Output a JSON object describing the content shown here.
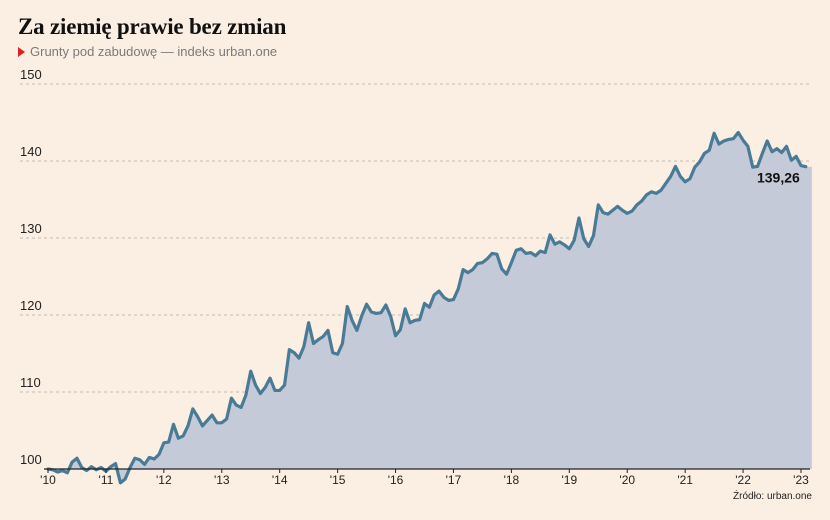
{
  "header": {
    "title": "Za ziemię prawie bez zmian",
    "subtitle": "Grunty pod zabudowę — indeks urban.one"
  },
  "footer": {
    "source": "Źródło: urban.one"
  },
  "colors": {
    "line": "#4a7b96",
    "area": "#c5cad8",
    "grid": "#b5aba0",
    "background": "#fbefe3",
    "marker": "#e02020"
  },
  "chart_data": {
    "type": "area",
    "title": "Za ziemię prawie bez zmian",
    "subtitle": "Grunty pod zabudowę — indeks urban.one",
    "xlabel": "",
    "ylabel": "",
    "ylim": [
      100,
      150
    ],
    "yticks": [
      100,
      110,
      120,
      130,
      140,
      150
    ],
    "xticks": [
      "'10",
      "'11",
      "'12",
      "'13",
      "'14",
      "'15",
      "'16",
      "'17",
      "'18",
      "'19",
      "'20",
      "'21",
      "'22",
      "'23"
    ],
    "grid": true,
    "x_start": "2010-01",
    "x_frequency": "monthly",
    "annotation": {
      "label": "139,26",
      "value": 139.26
    },
    "series": [
      {
        "values": [
          100.0,
          99.9,
          99.6,
          99.8,
          99.5,
          100.9,
          101.4,
          100.2,
          99.8,
          100.3,
          99.9,
          100.2,
          99.7,
          100.3,
          100.7,
          98.2,
          98.7,
          100.2,
          101.4,
          101.2,
          100.6,
          101.5,
          101.3,
          101.9,
          103.4,
          103.5,
          105.8,
          104.0,
          104.3,
          105.6,
          107.8,
          106.8,
          105.6,
          106.3,
          107.0,
          106.0,
          106.0,
          106.5,
          109.2,
          108.3,
          108.0,
          109.6,
          112.7,
          110.9,
          109.8,
          110.6,
          111.8,
          110.2,
          110.2,
          110.9,
          115.5,
          115.1,
          114.4,
          115.9,
          119.0,
          116.3,
          116.8,
          117.2,
          118.0,
          115.1,
          114.9,
          116.3,
          121.1,
          119.3,
          118.0,
          119.9,
          121.4,
          120.4,
          120.2,
          120.3,
          121.3,
          119.8,
          117.3,
          118.1,
          120.8,
          119.0,
          119.3,
          119.4,
          121.5,
          121.0,
          122.6,
          123.1,
          122.3,
          121.9,
          122.0,
          123.4,
          125.9,
          125.5,
          125.9,
          126.7,
          126.8,
          127.3,
          128.0,
          127.9,
          126.0,
          125.3,
          126.8,
          128.4,
          128.6,
          128.0,
          128.1,
          127.7,
          128.3,
          128.1,
          130.4,
          129.2,
          129.5,
          129.1,
          128.6,
          129.7,
          132.6,
          129.9,
          128.9,
          130.3,
          134.3,
          133.3,
          133.1,
          133.6,
          134.1,
          133.6,
          133.2,
          133.5,
          134.3,
          134.8,
          135.6,
          136.0,
          135.8,
          136.2,
          137.1,
          138.0,
          139.3,
          138.0,
          137.3,
          137.7,
          139.2,
          139.9,
          141.0,
          141.4,
          143.6,
          142.2,
          142.6,
          142.8,
          142.9,
          143.7,
          142.7,
          141.9,
          139.2,
          139.3,
          141.0,
          142.6,
          141.2,
          141.6,
          141.1,
          141.9,
          140.1,
          140.6,
          139.4,
          139.26
        ]
      }
    ]
  }
}
